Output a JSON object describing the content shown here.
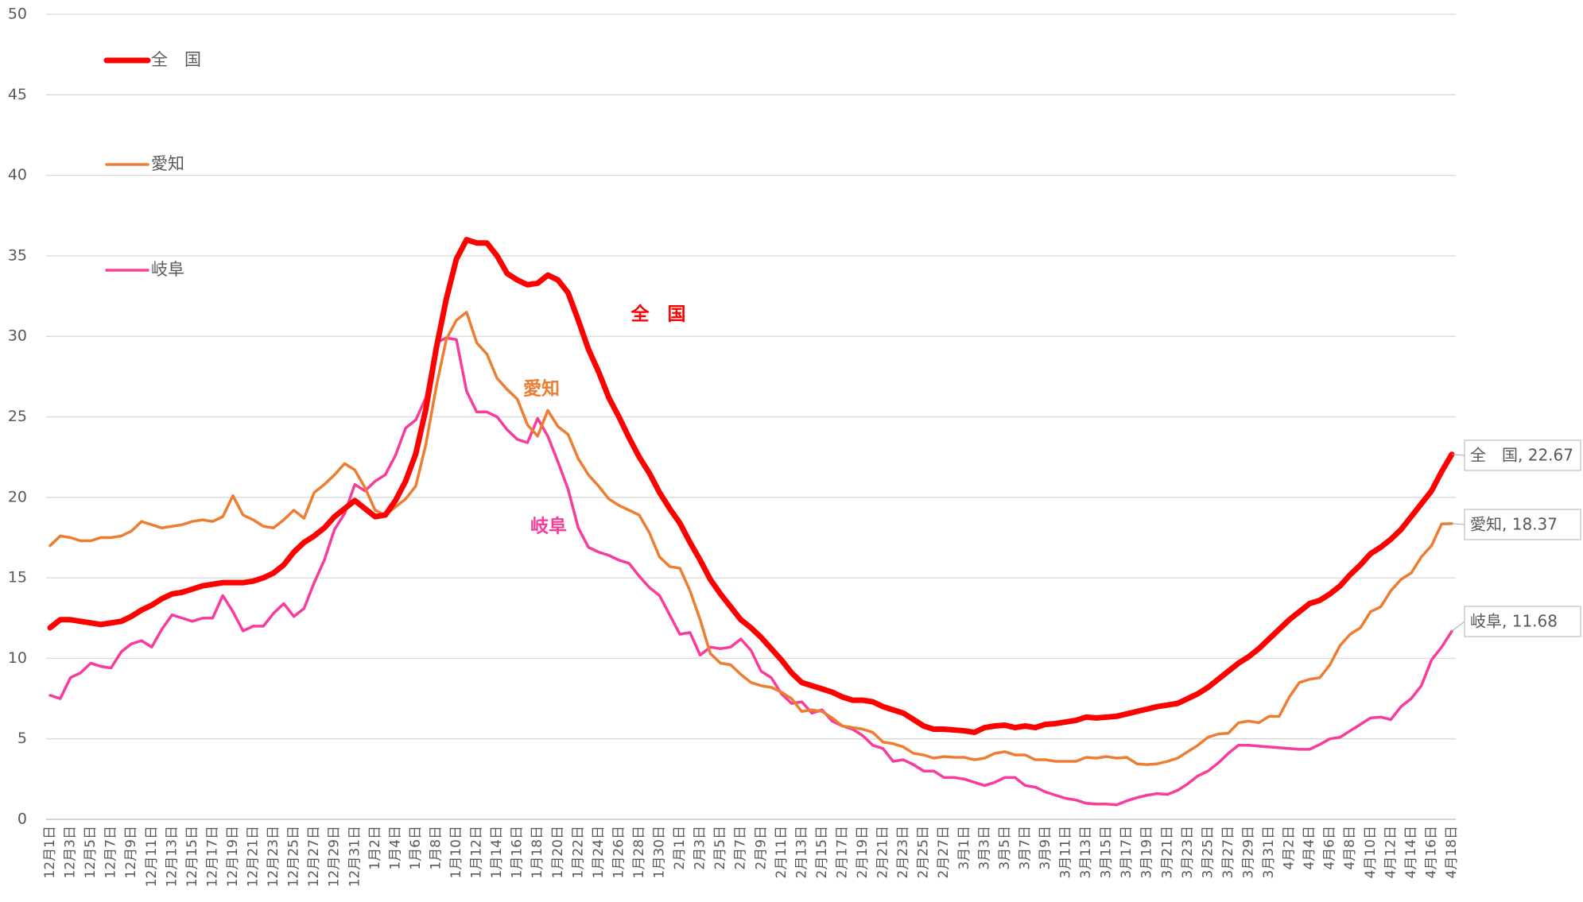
{
  "chart_data": {
    "type": "line",
    "categories": [
      "12月1日",
      null,
      "12月3日",
      null,
      "12月5日",
      null,
      "12月7日",
      null,
      "12月9日",
      null,
      "12月11日",
      null,
      "12月13日",
      null,
      "12月15日",
      null,
      "12月17日",
      null,
      "12月19日",
      null,
      "12月21日",
      null,
      "12月23日",
      null,
      "12月25日",
      null,
      "12月27日",
      null,
      "12月29日",
      null,
      "12月31日",
      null,
      "1月2日",
      null,
      "1月4日",
      null,
      "1月6日",
      null,
      "1月8日",
      null,
      "1月10日",
      null,
      "1月12日",
      null,
      "1月14日",
      null,
      "1月16日",
      null,
      "1月18日",
      null,
      "1月20日",
      null,
      "1月22日",
      null,
      "1月24日",
      null,
      "1月26日",
      null,
      "1月28日",
      null,
      "1月30日",
      null,
      "2月1日",
      null,
      "2月3日",
      null,
      "2月5日",
      null,
      "2月7日",
      null,
      "2月9日",
      null,
      "2月11日",
      null,
      "2月13日",
      null,
      "2月15日",
      null,
      "2月17日",
      null,
      "2月19日",
      null,
      "2月21日",
      null,
      "2月23日",
      null,
      "2月25日",
      null,
      "2月27日",
      null,
      "3月1日",
      null,
      "3月3日",
      null,
      "3月5日",
      null,
      "3月7日",
      null,
      "3月9日",
      null,
      "3月11日",
      null,
      "3月13日",
      null,
      "3月15日",
      null,
      "3月17日",
      null,
      "3月19日",
      null,
      "3月21日",
      null,
      "3月23日",
      null,
      "3月25日",
      null,
      "3月27日",
      null,
      "3月29日",
      null,
      "3月31日",
      null,
      "4月2日",
      null,
      "4月4日",
      null,
      "4月6日",
      null,
      "4月8日",
      null,
      "4月10日",
      null,
      "4月12日",
      null,
      "4月14日",
      null,
      "4月16日",
      null,
      "4月18日"
    ],
    "series": [
      {
        "name": "全　国",
        "color": "#ff0000",
        "width": 7,
        "last_label": "全　国, 22.67",
        "values": [
          11.9,
          12.4,
          12.4,
          12.3,
          12.2,
          12.1,
          12.2,
          12.3,
          12.6,
          13.0,
          13.3,
          13.7,
          14.0,
          14.1,
          14.3,
          14.5,
          14.6,
          14.7,
          14.7,
          14.7,
          14.8,
          15.0,
          15.3,
          15.8,
          16.6,
          17.2,
          17.6,
          18.1,
          18.8,
          19.3,
          19.8,
          19.3,
          18.8,
          18.9,
          19.8,
          21.0,
          22.7,
          25.5,
          29.2,
          32.3,
          34.8,
          36.0,
          35.8,
          35.8,
          35.0,
          33.9,
          33.5,
          33.2,
          33.3,
          33.8,
          33.5,
          32.7,
          31.0,
          29.2,
          27.8,
          26.2,
          25.0,
          23.7,
          22.5,
          21.5,
          20.3,
          19.3,
          18.4,
          17.2,
          16.1,
          14.9,
          14.0,
          13.2,
          12.4,
          11.9,
          11.3,
          10.6,
          9.9,
          9.1,
          8.5,
          8.3,
          8.1,
          7.9,
          7.6,
          7.4,
          7.4,
          7.3,
          7.0,
          6.8,
          6.6,
          6.2,
          5.8,
          5.6,
          5.6,
          5.55,
          5.5,
          5.4,
          5.7,
          5.8,
          5.85,
          5.7,
          5.8,
          5.7,
          5.9,
          5.95,
          6.05,
          6.15,
          6.35,
          6.3,
          6.35,
          6.4,
          6.55,
          6.7,
          6.85,
          7.0,
          7.1,
          7.2,
          7.5,
          7.8,
          8.2,
          8.7,
          9.2,
          9.7,
          10.1,
          10.6,
          11.2,
          11.8,
          12.4,
          12.9,
          13.4,
          13.6,
          14.0,
          14.5,
          15.2,
          15.8,
          16.5,
          16.9,
          17.4,
          18.0,
          18.8,
          19.6,
          20.4,
          21.6,
          22.67
        ]
      },
      {
        "name": "愛知",
        "color": "#ed7d31",
        "width": 3.5,
        "last_label": "愛知, 18.37",
        "values": [
          17.0,
          17.6,
          17.5,
          17.3,
          17.3,
          17.5,
          17.5,
          17.6,
          17.9,
          18.5,
          18.3,
          18.1,
          18.2,
          18.3,
          18.5,
          18.6,
          18.5,
          18.8,
          20.1,
          18.9,
          18.6,
          18.2,
          18.1,
          18.6,
          19.2,
          18.7,
          20.3,
          20.8,
          21.4,
          22.1,
          21.7,
          20.6,
          19.2,
          18.9,
          19.4,
          19.9,
          20.7,
          23.3,
          26.8,
          29.8,
          31.0,
          31.5,
          29.6,
          28.9,
          27.4,
          26.7,
          26.1,
          24.5,
          23.8,
          25.4,
          24.4,
          23.9,
          22.4,
          21.4,
          20.7,
          19.9,
          19.5,
          19.2,
          18.9,
          17.8,
          16.3,
          15.7,
          15.6,
          14.2,
          12.4,
          10.3,
          9.7,
          9.6,
          9.0,
          8.5,
          8.3,
          8.2,
          7.9,
          7.5,
          6.7,
          6.8,
          6.7,
          6.3,
          5.8,
          5.7,
          5.6,
          5.4,
          4.8,
          4.7,
          4.5,
          4.1,
          4.0,
          3.8,
          3.9,
          3.85,
          3.85,
          3.7,
          3.8,
          4.1,
          4.2,
          4.0,
          4.0,
          3.7,
          3.7,
          3.6,
          3.6,
          3.6,
          3.85,
          3.8,
          3.9,
          3.8,
          3.85,
          3.45,
          3.4,
          3.45,
          3.6,
          3.8,
          4.2,
          4.6,
          5.1,
          5.3,
          5.35,
          6.0,
          6.1,
          6.0,
          6.4,
          6.4,
          7.6,
          8.5,
          8.7,
          8.8,
          9.6,
          10.8,
          11.5,
          11.9,
          12.9,
          13.2,
          14.2,
          14.9,
          15.3,
          16.3,
          17.0,
          18.35,
          18.37
        ]
      },
      {
        "name": "岐阜",
        "color": "#f73c9c",
        "width": 3.5,
        "last_label": "岐阜, 11.68",
        "values": [
          7.7,
          7.5,
          8.8,
          9.1,
          9.7,
          9.5,
          9.4,
          10.4,
          10.9,
          11.1,
          10.7,
          11.8,
          12.7,
          12.5,
          12.3,
          12.5,
          12.5,
          13.9,
          12.9,
          11.7,
          12.0,
          12.0,
          12.8,
          13.4,
          12.6,
          13.1,
          14.7,
          16.1,
          18.0,
          19.0,
          20.8,
          20.4,
          21.0,
          21.4,
          22.6,
          24.3,
          24.8,
          26.2,
          29.6,
          29.9,
          29.8,
          26.6,
          25.3,
          25.3,
          25.0,
          24.2,
          23.6,
          23.4,
          24.9,
          23.8,
          22.2,
          20.5,
          18.1,
          16.9,
          16.6,
          16.4,
          16.1,
          15.9,
          15.1,
          14.4,
          13.9,
          12.7,
          11.5,
          11.6,
          10.2,
          10.7,
          10.6,
          10.7,
          11.2,
          10.5,
          9.2,
          8.8,
          7.8,
          7.2,
          7.3,
          6.6,
          6.8,
          6.1,
          5.8,
          5.6,
          5.2,
          4.6,
          4.4,
          3.6,
          3.7,
          3.4,
          3.0,
          3.0,
          2.6,
          2.6,
          2.5,
          2.3,
          2.1,
          2.3,
          2.6,
          2.6,
          2.1,
          2.0,
          1.7,
          1.5,
          1.3,
          1.2,
          1.0,
          0.95,
          0.95,
          0.9,
          1.15,
          1.35,
          1.5,
          1.6,
          1.55,
          1.8,
          2.2,
          2.7,
          3.0,
          3.5,
          4.1,
          4.6,
          4.6,
          4.55,
          4.5,
          4.45,
          4.4,
          4.35,
          4.35,
          4.65,
          5.0,
          5.1,
          5.5,
          5.9,
          6.3,
          6.35,
          6.2,
          7.0,
          7.5,
          8.3,
          9.9,
          10.7,
          11.68
        ]
      }
    ],
    "ylim": [
      0,
      50
    ],
    "yticks": [
      0,
      5,
      10,
      15,
      20,
      25,
      30,
      35,
      40,
      45,
      50
    ],
    "grid": true,
    "legend": "upper left"
  }
}
